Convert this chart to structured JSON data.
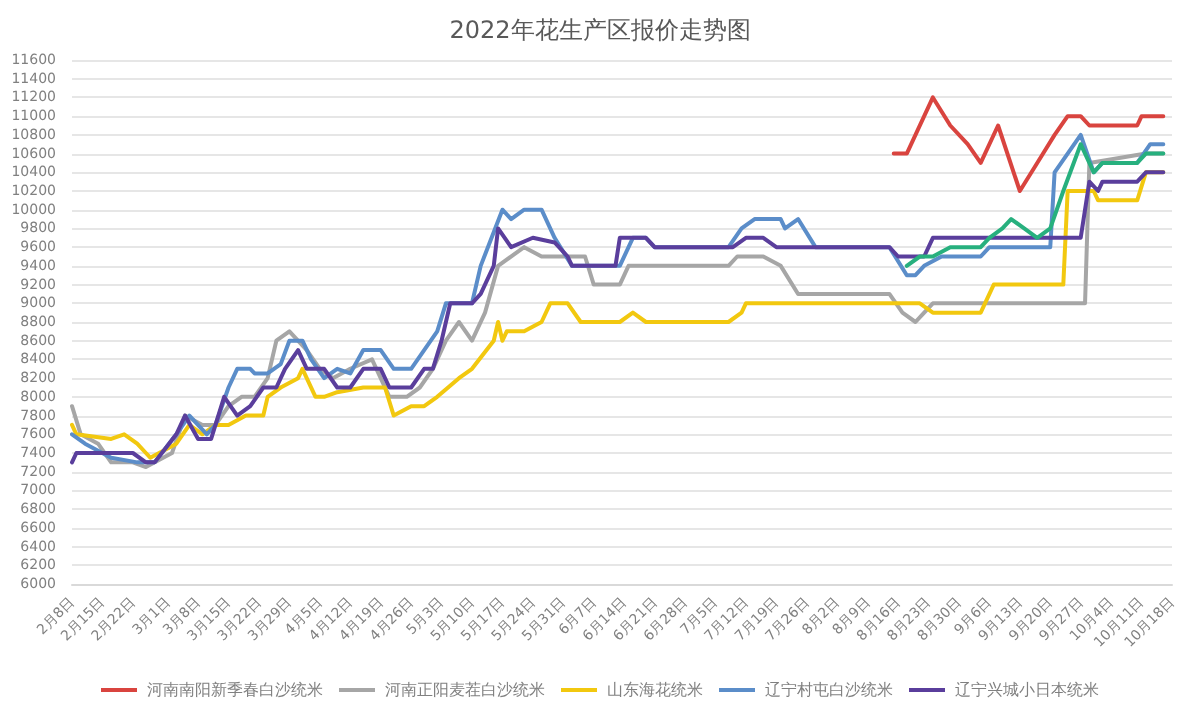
{
  "chart_data": {
    "type": "line",
    "title": "2022年花生产区报价走势图",
    "ylim": [
      6000,
      11600
    ],
    "yticks": [
      6000,
      6200,
      6400,
      6600,
      6800,
      7000,
      7200,
      7400,
      7600,
      7800,
      8000,
      8200,
      8400,
      8600,
      8800,
      9000,
      9200,
      9400,
      9600,
      9800,
      10000,
      10200,
      10400,
      10600,
      10800,
      11000,
      11200,
      11400,
      11600
    ],
    "xlim": [
      "--02-08",
      "--10-18"
    ],
    "xticks": [
      {
        "value": "--02-08",
        "label": "2月8日"
      },
      {
        "value": "--02-15",
        "label": "2月15日"
      },
      {
        "value": "--02-22",
        "label": "2月22日"
      },
      {
        "value": "--03-01",
        "label": "3月1日"
      },
      {
        "value": "--03-08",
        "label": "3月8日"
      },
      {
        "value": "--03-15",
        "label": "3月15日"
      },
      {
        "value": "--03-22",
        "label": "3月22日"
      },
      {
        "value": "--03-29",
        "label": "3月29日"
      },
      {
        "value": "--04-05",
        "label": "4月5日"
      },
      {
        "value": "--04-12",
        "label": "4月12日"
      },
      {
        "value": "--04-19",
        "label": "4月19日"
      },
      {
        "value": "--04-26",
        "label": "4月26日"
      },
      {
        "value": "--05-03",
        "label": "5月3日"
      },
      {
        "value": "--05-10",
        "label": "5月10日"
      },
      {
        "value": "--05-17",
        "label": "5月17日"
      },
      {
        "value": "--05-24",
        "label": "5月24日"
      },
      {
        "value": "--05-31",
        "label": "5月31日"
      },
      {
        "value": "--06-07",
        "label": "6月7日"
      },
      {
        "value": "--06-14",
        "label": "6月14日"
      },
      {
        "value": "--06-21",
        "label": "6月21日"
      },
      {
        "value": "--06-28",
        "label": "6月28日"
      },
      {
        "value": "--07-05",
        "label": "7月5日"
      },
      {
        "value": "--07-12",
        "label": "7月12日"
      },
      {
        "value": "--07-19",
        "label": "7月19日"
      },
      {
        "value": "--07-26",
        "label": "7月26日"
      },
      {
        "value": "--08-02",
        "label": "8月2日"
      },
      {
        "value": "--08-09",
        "label": "8月9日"
      },
      {
        "value": "--08-16",
        "label": "8月16日"
      },
      {
        "value": "--08-23",
        "label": "8月23日"
      },
      {
        "value": "--08-30",
        "label": "8月30日"
      },
      {
        "value": "--09-06",
        "label": "9月6日"
      },
      {
        "value": "--09-13",
        "label": "9月13日"
      },
      {
        "value": "--09-20",
        "label": "9月20日"
      },
      {
        "value": "--09-27",
        "label": "9月27日"
      },
      {
        "value": "--10-04",
        "label": "10月4日"
      },
      {
        "value": "--10-11",
        "label": "10月11日"
      },
      {
        "value": "--10-18",
        "label": "10月18日"
      }
    ],
    "grid": "y",
    "legend": "bottom",
    "marker": "none",
    "line_style": "solid",
    "series": [
      {
        "name": "河南南阳新季春白沙统米",
        "color": "#d9443f",
        "x": [
          "--08-15",
          "--08-18",
          "--08-24",
          "--08-28",
          "--09-01",
          "--09-04",
          "--09-08",
          "--09-13",
          "--09-17",
          "--09-21",
          "--09-24",
          "--09-27",
          "--09-29",
          "--10-10",
          "--10-11",
          "--10-16"
        ],
        "values": [
          10600,
          10600,
          11200,
          10900,
          10700,
          10500,
          10900,
          10200,
          10500,
          10800,
          11000,
          11000,
          10900,
          10900,
          11000,
          11000
        ]
      },
      {
        "name": "河南正阳麦茬白沙统米",
        "color": "#a6a6a6",
        "x": [
          "--02-08",
          "--02-10",
          "--02-14",
          "--02-17",
          "--02-22",
          "--02-25",
          "--03-02",
          "--03-05",
          "--03-09",
          "--03-12",
          "--03-15",
          "--03-18",
          "--03-21",
          "--03-24",
          "--03-26",
          "--03-29",
          "--04-02",
          "--04-05",
          "--04-08",
          "--04-12",
          "--04-17",
          "--04-21",
          "--04-25",
          "--04-28",
          "--05-01",
          "--05-04",
          "--05-07",
          "--05-10",
          "--05-13",
          "--05-16",
          "--05-22",
          "--05-26",
          "--06-05",
          "--06-07",
          "--06-13",
          "--06-15",
          "--07-08",
          "--07-10",
          "--07-16",
          "--07-20",
          "--07-24",
          "--08-14",
          "--08-17",
          "--08-20",
          "--08-22",
          "--08-24",
          "--09-28",
          "--09-29",
          "--10-12",
          "--10-16"
        ],
        "values": [
          7900,
          7600,
          7500,
          7300,
          7300,
          7250,
          7400,
          7800,
          7700,
          7700,
          7900,
          8000,
          8000,
          8200,
          8600,
          8700,
          8500,
          8300,
          8200,
          8300,
          8400,
          8000,
          8000,
          8100,
          8300,
          8600,
          8800,
          8600,
          8900,
          9400,
          9600,
          9500,
          9500,
          9200,
          9200,
          9400,
          9400,
          9500,
          9500,
          9400,
          9100,
          9100,
          8900,
          8800,
          8900,
          9000,
          9000,
          10500,
          10600,
          10600
        ]
      },
      {
        "name": "山东海花统米",
        "color": "#f2c80f",
        "x": [
          "--02-08",
          "--02-09",
          "--02-17",
          "--02-20",
          "--02-23",
          "--02-25",
          "--02-26",
          "--03-03",
          "--03-06",
          "--03-09",
          "--03-12",
          "--03-15",
          "--03-19",
          "--03-23",
          "--03-24",
          "--03-27",
          "--03-31",
          "--04-01",
          "--04-04",
          "--04-06",
          "--04-09",
          "--04-15",
          "--04-20",
          "--04-22",
          "--04-26",
          "--04-29",
          "--05-02",
          "--05-07",
          "--05-10",
          "--05-15",
          "--05-16",
          "--05-17",
          "--05-18",
          "--05-22",
          "--05-26",
          "--05-28",
          "--06-01",
          "--06-04",
          "--06-13",
          "--06-16",
          "--06-19",
          "--07-08",
          "--07-11",
          "--07-12",
          "--08-21",
          "--08-24",
          "--09-04",
          "--09-07",
          "--09-23",
          "--09-24",
          "--09-30",
          "--10-01",
          "--10-10",
          "--10-12",
          "--10-16"
        ],
        "values": [
          7700,
          7600,
          7550,
          7600,
          7500,
          7400,
          7350,
          7500,
          7700,
          7600,
          7700,
          7700,
          7800,
          7800,
          8000,
          8100,
          8200,
          8300,
          8000,
          8000,
          8050,
          8100,
          8100,
          7800,
          7900,
          7900,
          8000,
          8200,
          8300,
          8600,
          8800,
          8600,
          8700,
          8700,
          8800,
          9000,
          9000,
          8800,
          8800,
          8900,
          8800,
          8800,
          8900,
          9000,
          9000,
          8900,
          8900,
          9200,
          9200,
          10200,
          10200,
          10100,
          10100,
          10400,
          10400
        ]
      },
      {
        "name": "辽宁村屯白沙统米",
        "color": "#5b8dc9",
        "x": [
          "--02-08",
          "--02-11",
          "--02-17",
          "--02-23",
          "--02-27",
          "--03-03",
          "--03-06",
          "--03-10",
          "--03-12",
          "--03-15",
          "--03-17",
          "--03-20",
          "--03-21",
          "--03-24",
          "--03-27",
          "--03-29",
          "--04-01",
          "--04-03",
          "--04-06",
          "--04-09",
          "--04-12",
          "--04-15",
          "--04-19",
          "--04-22",
          "--04-26",
          "--04-29",
          "--05-02",
          "--05-04",
          "--05-10",
          "--05-12",
          "--05-17",
          "--05-19",
          "--05-22",
          "--05-26",
          "--05-29",
          "--06-02",
          "--06-13",
          "--06-16",
          "--06-19",
          "--06-21",
          "--07-08",
          "--07-11",
          "--07-14",
          "--07-20",
          "--07-21",
          "--07-24",
          "--07-28",
          "--08-14",
          "--08-18",
          "--08-20",
          "--08-22",
          "--08-26",
          "--09-04",
          "--09-06",
          "--09-20",
          "--09-21",
          "--09-27",
          "--09-30",
          "--10-02",
          "--10-10",
          "--10-13",
          "--10-16"
        ],
        "values": [
          7600,
          7500,
          7350,
          7300,
          7300,
          7600,
          7800,
          7600,
          7700,
          8100,
          8300,
          8300,
          8250,
          8250,
          8350,
          8600,
          8600,
          8400,
          8200,
          8300,
          8250,
          8500,
          8500,
          8300,
          8300,
          8500,
          8700,
          9000,
          9000,
          9400,
          10000,
          9900,
          10000,
          10000,
          9700,
          9400,
          9400,
          9700,
          9700,
          9600,
          9600,
          9800,
          9900,
          9900,
          9800,
          9900,
          9600,
          9600,
          9300,
          9300,
          9400,
          9500,
          9500,
          9600,
          9600,
          10400,
          10800,
          10400,
          10500,
          10500,
          10700,
          10700
        ]
      },
      {
        "name": "辽宁兴城小日本统米",
        "color": "#5a3e9c",
        "x": [
          "--02-08",
          "--02-09",
          "--02-22",
          "--02-25",
          "--02-27",
          "--03-03",
          "--03-05",
          "--03-08",
          "--03-11",
          "--03-14",
          "--03-17",
          "--03-20",
          "--03-23",
          "--03-26",
          "--03-28",
          "--03-31",
          "--04-02",
          "--04-06",
          "--04-09",
          "--04-12",
          "--04-15",
          "--04-19",
          "--04-21",
          "--04-26",
          "--04-29",
          "--05-01",
          "--05-03",
          "--05-05",
          "--05-10",
          "--05-12",
          "--05-15",
          "--05-16",
          "--05-19",
          "--05-24",
          "--05-29",
          "--06-01",
          "--06-02",
          "--06-12",
          "--06-13",
          "--06-19",
          "--06-21",
          "--07-09",
          "--07-12",
          "--07-16",
          "--07-19",
          "--08-14",
          "--08-16",
          "--08-22",
          "--08-24",
          "--09-27",
          "--09-29",
          "--10-01",
          "--10-02",
          "--10-10",
          "--10-12",
          "--10-16"
        ],
        "values": [
          7300,
          7400,
          7400,
          7300,
          7300,
          7600,
          7800,
          7550,
          7550,
          8000,
          7800,
          7900,
          8100,
          8100,
          8300,
          8500,
          8300,
          8300,
          8100,
          8100,
          8300,
          8300,
          8100,
          8100,
          8300,
          8300,
          8600,
          9000,
          9000,
          9100,
          9400,
          9800,
          9600,
          9700,
          9650,
          9500,
          9400,
          9400,
          9700,
          9700,
          9600,
          9600,
          9700,
          9700,
          9600,
          9600,
          9500,
          9500,
          9700,
          9700,
          10300,
          10200,
          10300,
          10300,
          10400,
          10400
        ]
      },
      {
        "color": "#27b07e",
        "x": [
          "--08-18",
          "--08-21",
          "--08-24",
          "--08-28",
          "--09-04",
          "--09-06",
          "--09-09",
          "--09-11",
          "--09-14",
          "--09-17",
          "--09-20",
          "--09-23",
          "--09-27",
          "--09-30",
          "--10-02",
          "--10-10",
          "--10-12",
          "--10-16"
        ],
        "values": [
          9400,
          9500,
          9500,
          9600,
          9600,
          9700,
          9800,
          9900,
          9800,
          9700,
          9800,
          10200,
          10700,
          10400,
          10500,
          10500,
          10600,
          10600
        ]
      }
    ]
  }
}
